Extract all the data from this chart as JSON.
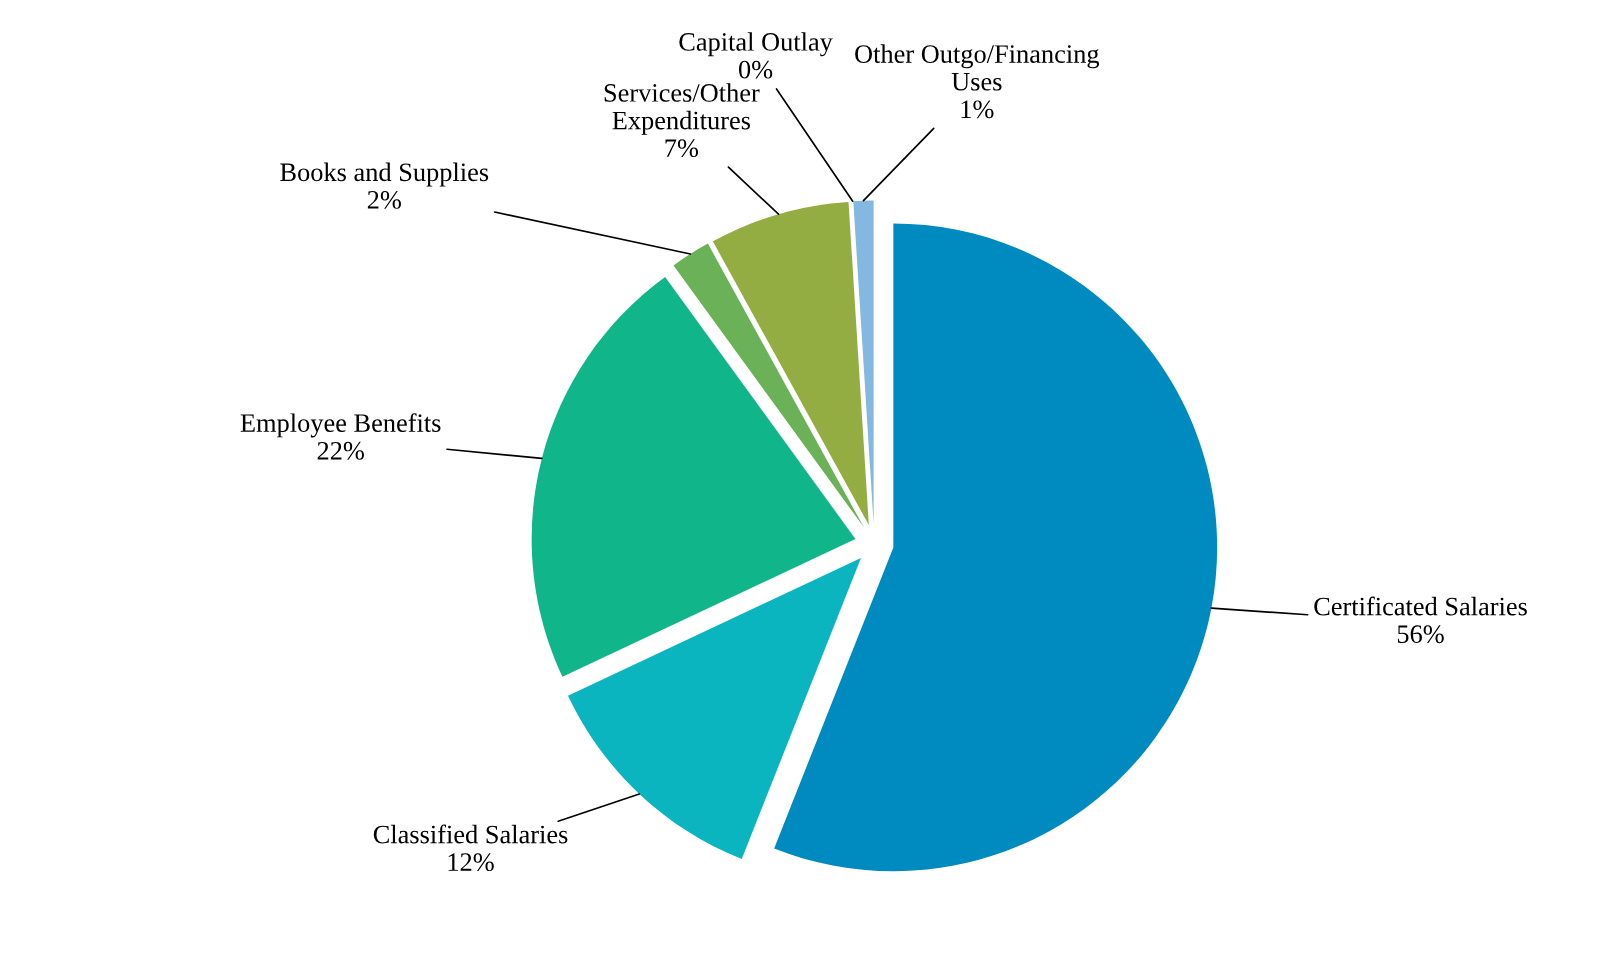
{
  "chart_data": {
    "type": "pie",
    "categories": [
      "Certificated Salaries",
      "Classified Salaries",
      "Employee Benefits",
      "Books and Supplies",
      "Services/Other\nExpenditures",
      "Capital Outlay",
      "Other Outgo/Financing\nUses"
    ],
    "values": [
      56,
      12,
      22,
      2,
      7,
      0,
      1
    ],
    "value_labels": [
      "56%",
      "12%",
      "22%",
      "2%",
      "7%",
      "0%",
      "1%"
    ],
    "colors": [
      "#008bc0",
      "#0bb5c0",
      "#10b68a",
      "#6ab157",
      "#94ad42",
      "#a9c6e8",
      "#85b8e0"
    ],
    "legend": false
  }
}
